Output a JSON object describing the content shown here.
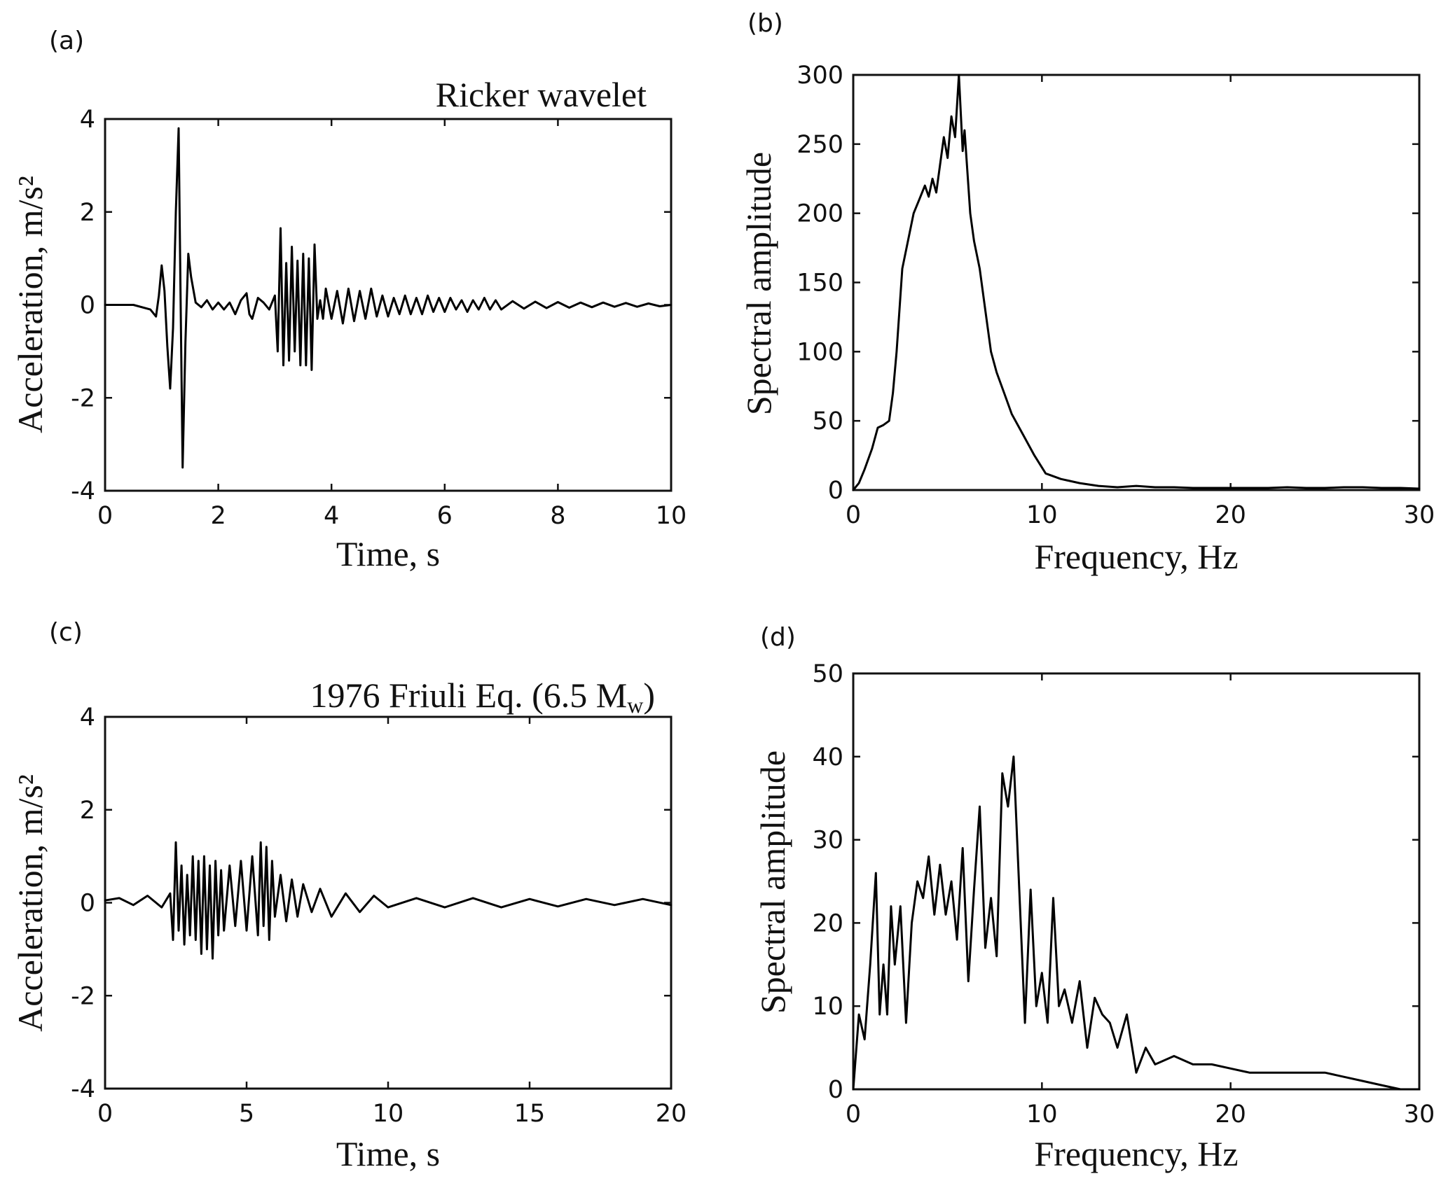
{
  "chart_data": [
    {
      "id": "a",
      "type": "line",
      "panel_label": "(a)",
      "annotation": "Ricker wavelet",
      "xlabel": "Time, s",
      "ylabel": "Acceleration, m/s²",
      "xlim": [
        0,
        10
      ],
      "ylim": [
        -4,
        4
      ],
      "xticks": [
        0,
        2,
        4,
        6,
        8,
        10
      ],
      "yticks": [
        -4,
        -2,
        0,
        2,
        4
      ],
      "grid": false,
      "series": [
        {
          "x": [
            0,
            0.5,
            0.8,
            0.9,
            0.95,
            1.0,
            1.05,
            1.1,
            1.15,
            1.2,
            1.25,
            1.3,
            1.33,
            1.37,
            1.42,
            1.47,
            1.52,
            1.6,
            1.7,
            1.8,
            1.9,
            2.0,
            2.1,
            2.2,
            2.3,
            2.4,
            2.5,
            2.55,
            2.6,
            2.7,
            2.8,
            2.9,
            3.0,
            3.05,
            3.1,
            3.15,
            3.2,
            3.25,
            3.3,
            3.35,
            3.4,
            3.45,
            3.5,
            3.55,
            3.6,
            3.65,
            3.7,
            3.75,
            3.8,
            3.85,
            3.9,
            4.0,
            4.1,
            4.2,
            4.3,
            4.4,
            4.5,
            4.6,
            4.7,
            4.8,
            4.9,
            5.0,
            5.1,
            5.2,
            5.3,
            5.4,
            5.5,
            5.6,
            5.7,
            5.8,
            5.9,
            6.0,
            6.1,
            6.2,
            6.3,
            6.4,
            6.5,
            6.6,
            6.7,
            6.8,
            6.9,
            7.0,
            7.2,
            7.4,
            7.6,
            7.8,
            8.0,
            8.2,
            8.4,
            8.6,
            8.8,
            9.0,
            9.2,
            9.4,
            9.6,
            9.8,
            10.0
          ],
          "y": [
            0,
            0,
            -0.1,
            -0.25,
            0.2,
            0.85,
            0.3,
            -0.9,
            -1.8,
            -0.5,
            2.0,
            3.8,
            0.5,
            -3.5,
            -0.8,
            1.1,
            0.6,
            0.05,
            -0.05,
            0.1,
            -0.1,
            0.05,
            -0.1,
            0.05,
            -0.2,
            0.1,
            0.25,
            -0.2,
            -0.3,
            0.15,
            0.05,
            -0.1,
            0.2,
            -1.0,
            1.65,
            -1.3,
            0.9,
            -1.2,
            1.25,
            -1.0,
            0.95,
            -1.3,
            1.1,
            -1.3,
            1.0,
            -1.4,
            1.3,
            -0.3,
            0.1,
            -0.3,
            0.35,
            -0.3,
            0.3,
            -0.4,
            0.35,
            -0.35,
            0.3,
            -0.3,
            0.35,
            -0.25,
            0.2,
            -0.25,
            0.15,
            -0.2,
            0.2,
            -0.2,
            0.15,
            -0.2,
            0.2,
            -0.15,
            0.15,
            -0.15,
            0.15,
            -0.1,
            0.1,
            -0.15,
            0.1,
            -0.1,
            0.15,
            -0.1,
            0.1,
            -0.1,
            0.08,
            -0.08,
            0.07,
            -0.07,
            0.06,
            -0.06,
            0.05,
            -0.05,
            0.05,
            -0.04,
            0.04,
            -0.04,
            0.03,
            -0.03,
            0.0
          ]
        }
      ]
    },
    {
      "id": "b",
      "type": "line",
      "panel_label": "(b)",
      "xlabel": "Frequency, Hz",
      "ylabel": "Spectral amplitude",
      "xlim": [
        0,
        30
      ],
      "ylim": [
        0,
        300
      ],
      "xticks": [
        0,
        10,
        20,
        30
      ],
      "yticks": [
        0,
        50,
        100,
        150,
        200,
        250,
        300
      ],
      "grid": false,
      "series": [
        {
          "x": [
            0,
            0.3,
            0.6,
            1.0,
            1.3,
            1.6,
            1.9,
            2.1,
            2.3,
            2.6,
            2.9,
            3.2,
            3.5,
            3.8,
            4.0,
            4.2,
            4.4,
            4.6,
            4.8,
            5.0,
            5.2,
            5.4,
            5.6,
            5.8,
            5.9,
            6.0,
            6.2,
            6.4,
            6.7,
            7.0,
            7.3,
            7.6,
            8.0,
            8.4,
            9.0,
            9.6,
            10.2,
            11.0,
            12.0,
            13.0,
            14.0,
            15.0,
            16.0,
            17.0,
            18.0,
            19.0,
            20.0,
            21.0,
            22.0,
            23.0,
            24.0,
            25.0,
            26.0,
            27.0,
            28.0,
            29.0,
            30.0
          ],
          "y": [
            0,
            5,
            15,
            30,
            45,
            47,
            50,
            70,
            100,
            160,
            180,
            200,
            210,
            220,
            212,
            225,
            215,
            235,
            255,
            240,
            270,
            255,
            300,
            245,
            260,
            240,
            200,
            180,
            160,
            130,
            100,
            85,
            70,
            55,
            40,
            25,
            12,
            8,
            5,
            3,
            2,
            3,
            2,
            2,
            1.5,
            1.5,
            1.5,
            1.5,
            1.5,
            2,
            1.5,
            1.5,
            2,
            2,
            1.5,
            1.5,
            1
          ]
        }
      ]
    },
    {
      "id": "c",
      "type": "line",
      "panel_label": "(c)",
      "annotation_main": "1976 Friuli Eq. (6.5 M",
      "annotation_sub": "w",
      "annotation_close": ")",
      "xlabel": "Time, s",
      "ylabel": "Acceleration, m/s²",
      "xlim": [
        0,
        20
      ],
      "ylim": [
        -4,
        4
      ],
      "xticks": [
        0,
        5,
        10,
        15,
        20
      ],
      "yticks": [
        -4,
        -2,
        0,
        2,
        4
      ],
      "grid": false,
      "series": [
        {
          "x": [
            0,
            0.5,
            1.0,
            1.5,
            2.0,
            2.3,
            2.4,
            2.5,
            2.6,
            2.7,
            2.8,
            2.9,
            3.0,
            3.1,
            3.2,
            3.3,
            3.4,
            3.5,
            3.6,
            3.7,
            3.8,
            3.9,
            4.0,
            4.1,
            4.2,
            4.4,
            4.6,
            4.8,
            5.0,
            5.2,
            5.4,
            5.5,
            5.6,
            5.7,
            5.8,
            5.9,
            6.0,
            6.2,
            6.4,
            6.6,
            6.8,
            7.0,
            7.3,
            7.6,
            8.0,
            8.5,
            9.0,
            9.5,
            10.0,
            11.0,
            12.0,
            13.0,
            14.0,
            15.0,
            16.0,
            17.0,
            18.0,
            19.0,
            20.0
          ],
          "y": [
            0.05,
            0.1,
            -0.05,
            0.15,
            -0.1,
            0.2,
            -0.8,
            1.3,
            -0.6,
            0.8,
            -0.9,
            0.6,
            -0.7,
            1.0,
            -0.8,
            0.9,
            -1.1,
            1.0,
            -1.0,
            0.8,
            -1.2,
            0.9,
            -0.7,
            0.7,
            -0.6,
            0.8,
            -0.5,
            0.9,
            -0.6,
            1.0,
            -0.7,
            1.3,
            -0.5,
            1.2,
            -0.8,
            0.9,
            -0.3,
            0.6,
            -0.4,
            0.5,
            -0.3,
            0.4,
            -0.2,
            0.3,
            -0.3,
            0.2,
            -0.2,
            0.15,
            -0.1,
            0.1,
            -0.1,
            0.1,
            -0.1,
            0.08,
            -0.08,
            0.08,
            -0.05,
            0.08,
            -0.05
          ]
        }
      ]
    },
    {
      "id": "d",
      "type": "line",
      "panel_label": "(d)",
      "xlabel": "Frequency, Hz",
      "ylabel": "Spectral amplitude",
      "xlim": [
        0,
        30
      ],
      "ylim": [
        0,
        50
      ],
      "xticks": [
        0,
        10,
        20,
        30
      ],
      "yticks": [
        0,
        10,
        20,
        30,
        40,
        50
      ],
      "grid": false,
      "series": [
        {
          "x": [
            0,
            0.3,
            0.6,
            0.9,
            1.2,
            1.4,
            1.6,
            1.8,
            2.0,
            2.2,
            2.5,
            2.8,
            3.1,
            3.4,
            3.7,
            4.0,
            4.3,
            4.6,
            4.9,
            5.2,
            5.5,
            5.8,
            6.1,
            6.4,
            6.7,
            7.0,
            7.3,
            7.6,
            7.9,
            8.2,
            8.5,
            8.8,
            9.1,
            9.4,
            9.7,
            10.0,
            10.3,
            10.6,
            10.9,
            11.2,
            11.6,
            12.0,
            12.4,
            12.8,
            13.2,
            13.6,
            14.0,
            14.5,
            15.0,
            15.5,
            16.0,
            17.0,
            18.0,
            19.0,
            20.0,
            21.0,
            22.0,
            23.0,
            24.0,
            25.0,
            26.0,
            27.0,
            28.0,
            29.0,
            30.0
          ],
          "y": [
            0,
            9,
            6,
            15,
            26,
            9,
            15,
            9,
            22,
            15,
            22,
            8,
            20,
            25,
            23,
            28,
            21,
            27,
            21,
            25,
            18,
            29,
            13,
            24,
            34,
            17,
            23,
            16,
            38,
            34,
            40,
            24,
            8,
            24,
            10,
            14,
            8,
            23,
            10,
            12,
            8,
            13,
            5,
            11,
            9,
            8,
            5,
            9,
            2,
            5,
            3,
            4,
            3,
            3,
            2.5,
            2,
            2,
            2,
            2,
            2,
            1.5,
            1,
            0.5,
            0,
            0
          ]
        }
      ]
    }
  ]
}
